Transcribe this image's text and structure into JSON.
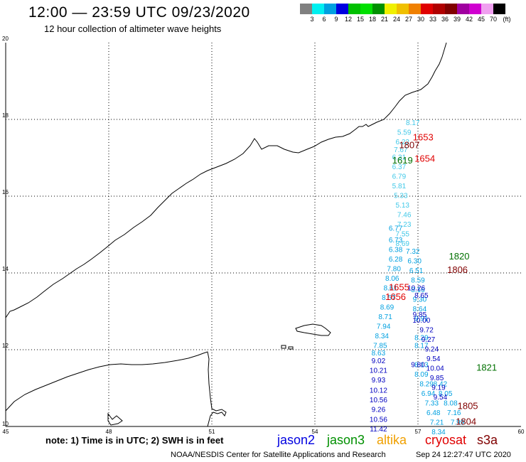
{
  "title": "12:00 — 23:59 UTC 09/23/2020",
  "subtitle": "12 hour collection of altimeter wave heights",
  "colorbar": {
    "labels": [
      "3",
      "6",
      "9",
      "12",
      "15",
      "18",
      "21",
      "24",
      "27",
      "30",
      "33",
      "36",
      "39",
      "42",
      "45",
      "70",
      "(ft)"
    ],
    "colors": [
      "#808080",
      "#00f0f0",
      "#00a0e0",
      "#0000e0",
      "#00c000",
      "#00e000",
      "#009000",
      "#f0f000",
      "#f0c000",
      "#f08000",
      "#e00000",
      "#b00000",
      "#800000",
      "#a000a0",
      "#d000d0",
      "#f0a0f0",
      "#000000"
    ]
  },
  "axes": {
    "x_ticks": [
      "45",
      "48",
      "51",
      "54",
      "57",
      "60"
    ],
    "y_ticks": [
      "20",
      "18",
      "16",
      "14",
      "12",
      "10"
    ]
  },
  "chart_data": {
    "type": "scatter",
    "x_range": [
      45,
      60
    ],
    "y_range": [
      10,
      20
    ],
    "colors": {
      "dark_blue": "#0000c0",
      "mid_blue": "#00a0e0",
      "light_cyan": "#40c8e8",
      "green": "#007000",
      "red": "#e00000",
      "dark_red": "#800000"
    },
    "tracks": [
      {
        "name": "jason2",
        "color": "#0000c0",
        "points": [
          {
            "lon": 55.85,
            "lat": 11.65,
            "v": "9.02"
          },
          {
            "lon": 55.85,
            "lat": 11.4,
            "v": "10.21"
          },
          {
            "lon": 55.85,
            "lat": 11.15,
            "v": "9.93"
          },
          {
            "lon": 55.85,
            "lat": 10.88,
            "v": "10.12"
          },
          {
            "lon": 55.85,
            "lat": 10.63,
            "v": "10.56"
          },
          {
            "lon": 55.85,
            "lat": 10.38,
            "v": "9.26"
          },
          {
            "lon": 55.85,
            "lat": 10.12,
            "v": "10.56"
          },
          {
            "lon": 55.85,
            "lat": 9.87,
            "v": "11.42"
          }
        ]
      },
      {
        "name": "descending",
        "color": "#00a0e0",
        "points": [
          {
            "lon": 56.35,
            "lat": 15.1,
            "v": "6.77"
          },
          {
            "lon": 56.35,
            "lat": 14.8,
            "v": "6.73"
          },
          {
            "lon": 56.35,
            "lat": 14.55,
            "v": "6.38"
          },
          {
            "lon": 56.35,
            "lat": 14.3,
            "v": "6.28"
          },
          {
            "lon": 56.3,
            "lat": 14.05,
            "v": "7.80"
          },
          {
            "lon": 56.25,
            "lat": 13.8,
            "v": "8.06"
          },
          {
            "lon": 56.2,
            "lat": 13.55,
            "v": "8.61"
          },
          {
            "lon": 56.15,
            "lat": 13.3,
            "v": "8.57"
          },
          {
            "lon": 56.1,
            "lat": 13.05,
            "v": "8.69"
          },
          {
            "lon": 56.05,
            "lat": 12.8,
            "v": "8.71"
          },
          {
            "lon": 56.0,
            "lat": 12.55,
            "v": "7.94"
          },
          {
            "lon": 55.95,
            "lat": 12.3,
            "v": "8.34"
          },
          {
            "lon": 55.9,
            "lat": 12.05,
            "v": "7.85"
          },
          {
            "lon": 55.85,
            "lat": 11.85,
            "v": "8.63"
          },
          {
            "lon": 57.1,
            "lat": 12.25,
            "v": "8.29"
          },
          {
            "lon": 57.1,
            "lat": 12.05,
            "v": "8.17"
          },
          {
            "lon": 57.1,
            "lat": 11.55,
            "v": "8.13"
          },
          {
            "lon": 57.1,
            "lat": 11.3,
            "v": "8.09"
          },
          {
            "lon": 57.25,
            "lat": 11.05,
            "v": "8.29"
          },
          {
            "lon": 57.3,
            "lat": 10.8,
            "v": "6.94"
          },
          {
            "lon": 57.4,
            "lat": 10.55,
            "v": "7.33"
          },
          {
            "lon": 57.45,
            "lat": 10.3,
            "v": "6.48"
          },
          {
            "lon": 57.55,
            "lat": 10.05,
            "v": "7.21"
          },
          {
            "lon": 57.6,
            "lat": 9.8,
            "v": "8.34"
          },
          {
            "lon": 57.65,
            "lat": 11.05,
            "v": "8.42"
          },
          {
            "lon": 57.8,
            "lat": 10.8,
            "v": "8.05"
          },
          {
            "lon": 57.95,
            "lat": 10.55,
            "v": "8.08"
          },
          {
            "lon": 58.05,
            "lat": 10.3,
            "v": "7.16"
          },
          {
            "lon": 58.15,
            "lat": 10.05,
            "v": "7.99"
          }
        ]
      },
      {
        "name": "ascending",
        "color": "#40c8e8",
        "points": [
          {
            "lon": 56.85,
            "lat": 17.85,
            "v": "8.17"
          },
          {
            "lon": 56.6,
            "lat": 17.6,
            "v": "5.59"
          },
          {
            "lon": 56.55,
            "lat": 17.35,
            "v": "6.22"
          },
          {
            "lon": 56.5,
            "lat": 17.15,
            "v": "7.67"
          },
          {
            "lon": 56.45,
            "lat": 16.95,
            "v": "6.31"
          },
          {
            "lon": 56.45,
            "lat": 16.7,
            "v": "6.37"
          },
          {
            "lon": 56.45,
            "lat": 16.45,
            "v": "6.79"
          },
          {
            "lon": 56.45,
            "lat": 16.2,
            "v": "5.81"
          },
          {
            "lon": 56.5,
            "lat": 15.95,
            "v": "5.33"
          },
          {
            "lon": 56.55,
            "lat": 15.7,
            "v": "5.13"
          },
          {
            "lon": 56.6,
            "lat": 15.45,
            "v": "7.46"
          },
          {
            "lon": 56.6,
            "lat": 15.2,
            "v": "7.23"
          },
          {
            "lon": 56.55,
            "lat": 14.95,
            "v": "7.55"
          },
          {
            "lon": 56.55,
            "lat": 14.7,
            "v": "8.69"
          }
        ]
      },
      {
        "name": "mid_track",
        "color": "#00a0e0",
        "points": [
          {
            "lon": 56.85,
            "lat": 14.5,
            "v": "7.32"
          },
          {
            "lon": 56.9,
            "lat": 14.25,
            "v": "6.30"
          },
          {
            "lon": 56.95,
            "lat": 14.0,
            "v": "6.51"
          },
          {
            "lon": 57.0,
            "lat": 13.75,
            "v": "8.59"
          },
          {
            "lon": 57.0,
            "lat": 13.5,
            "v": "8.16"
          },
          {
            "lon": 57.05,
            "lat": 13.25,
            "v": "9.30"
          },
          {
            "lon": 57.05,
            "lat": 13.0,
            "v": "8.64"
          },
          {
            "lon": 57.1,
            "lat": 12.75,
            "v": "9.91"
          }
        ]
      },
      {
        "name": "descending_blue",
        "color": "#0000c0",
        "points": [
          {
            "lon": 56.95,
            "lat": 13.55,
            "v": "10.26"
          },
          {
            "lon": 57.1,
            "lat": 13.35,
            "v": "8.65"
          },
          {
            "lon": 57.05,
            "lat": 12.85,
            "v": "9.85"
          },
          {
            "lon": 57.1,
            "lat": 12.7,
            "v": "10.00"
          },
          {
            "lon": 57.25,
            "lat": 12.45,
            "v": "9.72"
          },
          {
            "lon": 57.3,
            "lat": 12.2,
            "v": "9.27"
          },
          {
            "lon": 57.4,
            "lat": 11.95,
            "v": "9.24"
          },
          {
            "lon": 57.45,
            "lat": 11.7,
            "v": "9.54"
          },
          {
            "lon": 57.5,
            "lat": 11.45,
            "v": "10.04"
          },
          {
            "lon": 57.55,
            "lat": 11.2,
            "v": "9.85"
          },
          {
            "lon": 57.6,
            "lat": 10.95,
            "v": "9.19"
          },
          {
            "lon": 57.65,
            "lat": 10.7,
            "v": "9.54"
          },
          {
            "lon": 57.0,
            "lat": 11.55,
            "v": "9.80"
          }
        ]
      }
    ],
    "time_labels": [
      {
        "lon": 57.15,
        "lat": 17.45,
        "v": "1653",
        "color": "#e00000"
      },
      {
        "lon": 56.75,
        "lat": 17.25,
        "v": "1807",
        "color": "#800000"
      },
      {
        "lon": 57.2,
        "lat": 16.9,
        "v": "1654",
        "color": "#e00000"
      },
      {
        "lon": 56.55,
        "lat": 16.85,
        "v": "1619",
        "color": "#007000"
      },
      {
        "lon": 58.2,
        "lat": 14.35,
        "v": "1820",
        "color": "#007000"
      },
      {
        "lon": 58.15,
        "lat": 14.0,
        "v": "1806",
        "color": "#800000"
      },
      {
        "lon": 56.45,
        "lat": 13.55,
        "v": "1655",
        "color": "#e00000"
      },
      {
        "lon": 56.35,
        "lat": 13.3,
        "v": "1656",
        "color": "#e00000"
      },
      {
        "lon": 59.0,
        "lat": 11.45,
        "v": "1821",
        "color": "#007000"
      },
      {
        "lon": 58.45,
        "lat": 10.45,
        "v": "1805",
        "color": "#800000"
      },
      {
        "lon": 58.4,
        "lat": 10.05,
        "v": "1804",
        "color": "#800000"
      }
    ]
  },
  "footer": {
    "note": "note:  1) Time is in UTC;  2) SWH is in feet",
    "credit": "NOAA/NESDIS Center for Satellite Applications and Research",
    "timestamp": "Sep 24 12:27:47 UTC 2020",
    "satellites": [
      {
        "label": "jason2",
        "color": "#0000e0"
      },
      {
        "label": "jason3",
        "color": "#009000"
      },
      {
        "label": "altika",
        "color": "#f0a000"
      },
      {
        "label": "cryosat",
        "color": "#e00000"
      },
      {
        "label": "s3a",
        "color": "#800000"
      }
    ]
  }
}
